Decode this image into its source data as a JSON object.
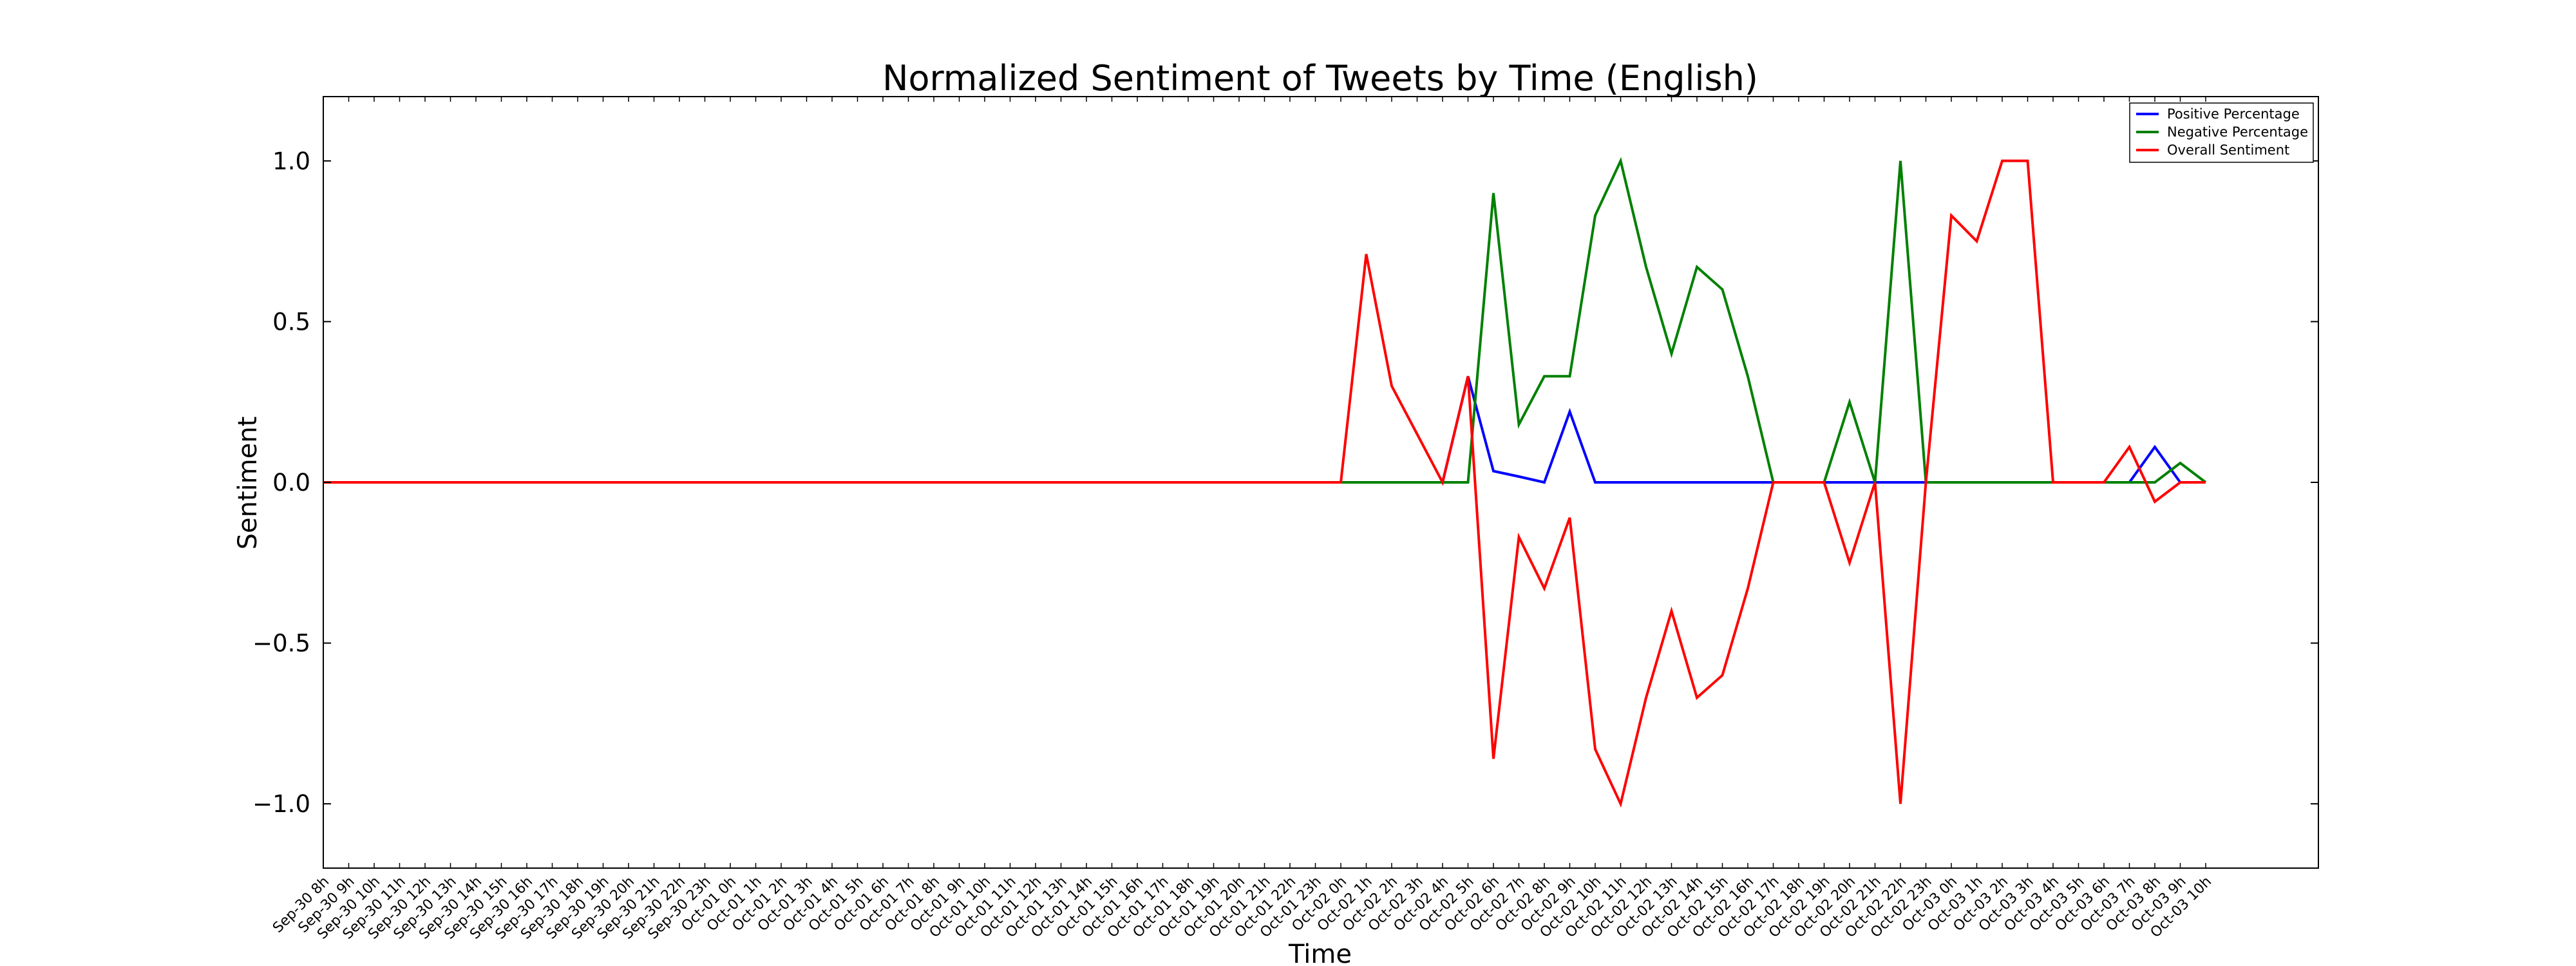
{
  "chart_data": {
    "type": "line",
    "title": "Normalized Sentiment of Tweets by Time (English)",
    "xlabel": "Time",
    "ylabel": "Sentiment",
    "ylim": [
      -1.2,
      1.2
    ],
    "yticks": [
      -1.0,
      -0.5,
      0.0,
      0.5,
      1.0
    ],
    "ytick_labels": [
      "−1.0",
      "−0.5",
      "0.0",
      "0.5",
      "1.0"
    ],
    "grid": false,
    "legend_position": "top-right",
    "x": [
      "Sep-30 8h",
      "Sep-30 9h",
      "Sep-30 10h",
      "Sep-30 11h",
      "Sep-30 12h",
      "Sep-30 13h",
      "Sep-30 14h",
      "Sep-30 15h",
      "Sep-30 16h",
      "Sep-30 17h",
      "Sep-30 18h",
      "Sep-30 19h",
      "Sep-30 20h",
      "Sep-30 21h",
      "Sep-30 22h",
      "Sep-30 23h",
      "Oct-01 0h",
      "Oct-01 1h",
      "Oct-01 2h",
      "Oct-01 3h",
      "Oct-01 4h",
      "Oct-01 5h",
      "Oct-01 6h",
      "Oct-01 7h",
      "Oct-01 8h",
      "Oct-01 9h",
      "Oct-01 10h",
      "Oct-01 11h",
      "Oct-01 12h",
      "Oct-01 13h",
      "Oct-01 14h",
      "Oct-01 15h",
      "Oct-01 16h",
      "Oct-01 17h",
      "Oct-01 18h",
      "Oct-01 19h",
      "Oct-01 20h",
      "Oct-01 21h",
      "Oct-01 22h",
      "Oct-01 23h",
      "Oct-02 0h",
      "Oct-02 1h",
      "Oct-02 2h",
      "Oct-02 3h",
      "Oct-02 4h",
      "Oct-02 5h",
      "Oct-02 6h",
      "Oct-02 7h",
      "Oct-02 8h",
      "Oct-02 9h",
      "Oct-02 10h",
      "Oct-02 11h",
      "Oct-02 12h",
      "Oct-02 13h",
      "Oct-02 14h",
      "Oct-02 15h",
      "Oct-02 16h",
      "Oct-02 17h",
      "Oct-02 18h",
      "Oct-02 19h",
      "Oct-02 20h",
      "Oct-02 21h",
      "Oct-02 22h",
      "Oct-02 23h",
      "Oct-03 0h",
      "Oct-03 1h",
      "Oct-03 2h",
      "Oct-03 3h",
      "Oct-03 4h",
      "Oct-03 5h",
      "Oct-03 6h",
      "Oct-03 7h",
      "Oct-03 8h",
      "Oct-03 9h",
      "Oct-03 10h"
    ],
    "series": [
      {
        "name": "Positive Percentage",
        "color": "#0000ff",
        "values": [
          0,
          0,
          0,
          0,
          0,
          0,
          0,
          0,
          0,
          0,
          0,
          0,
          0,
          0,
          0,
          0,
          0,
          0,
          0,
          0,
          0,
          0,
          0,
          0,
          0,
          0,
          0,
          0,
          0,
          0,
          0,
          0,
          0,
          0,
          0,
          0,
          0,
          0,
          0,
          0,
          0,
          0,
          0,
          0,
          0,
          0.33,
          0.035,
          0.018,
          0,
          0.22,
          0,
          0,
          0,
          0,
          0,
          0,
          0,
          0,
          0,
          0,
          0,
          0,
          0,
          0,
          0,
          0,
          0,
          0,
          0,
          0,
          0,
          0,
          0.11,
          0,
          0
        ]
      },
      {
        "name": "Negative Percentage",
        "color": "#008000",
        "values": [
          0,
          0,
          0,
          0,
          0,
          0,
          0,
          0,
          0,
          0,
          0,
          0,
          0,
          0,
          0,
          0,
          0,
          0,
          0,
          0,
          0,
          0,
          0,
          0,
          0,
          0,
          0,
          0,
          0,
          0,
          0,
          0,
          0,
          0,
          0,
          0,
          0,
          0,
          0,
          0,
          0,
          0,
          0,
          0,
          0,
          0,
          0.9,
          0.18,
          0.33,
          0.33,
          0.83,
          1.0,
          0.67,
          0.4,
          0.67,
          0.6,
          0.33,
          0,
          0,
          0,
          0.25,
          0,
          1.0,
          0,
          0,
          0,
          0,
          0,
          0,
          0,
          0,
          0,
          0,
          0.06,
          0
        ]
      },
      {
        "name": "Overall Sentiment",
        "color": "#ff0000",
        "values": [
          0,
          0,
          0,
          0,
          0,
          0,
          0,
          0,
          0,
          0,
          0,
          0,
          0,
          0,
          0,
          0,
          0,
          0,
          0,
          0,
          0,
          0,
          0,
          0,
          0,
          0,
          0,
          0,
          0,
          0,
          0,
          0,
          0,
          0,
          0,
          0,
          0,
          0,
          0,
          0,
          0,
          0.71,
          0.3,
          0.15,
          0,
          0.33,
          -0.86,
          -0.17,
          -0.33,
          -0.11,
          -0.83,
          -1.0,
          -0.67,
          -0.4,
          -0.67,
          -0.6,
          -0.33,
          0,
          0,
          0,
          -0.25,
          0,
          -1.0,
          0,
          0.83,
          0.75,
          1.0,
          1.0,
          0,
          0,
          0,
          0.11,
          -0.06,
          0,
          0
        ]
      }
    ]
  }
}
